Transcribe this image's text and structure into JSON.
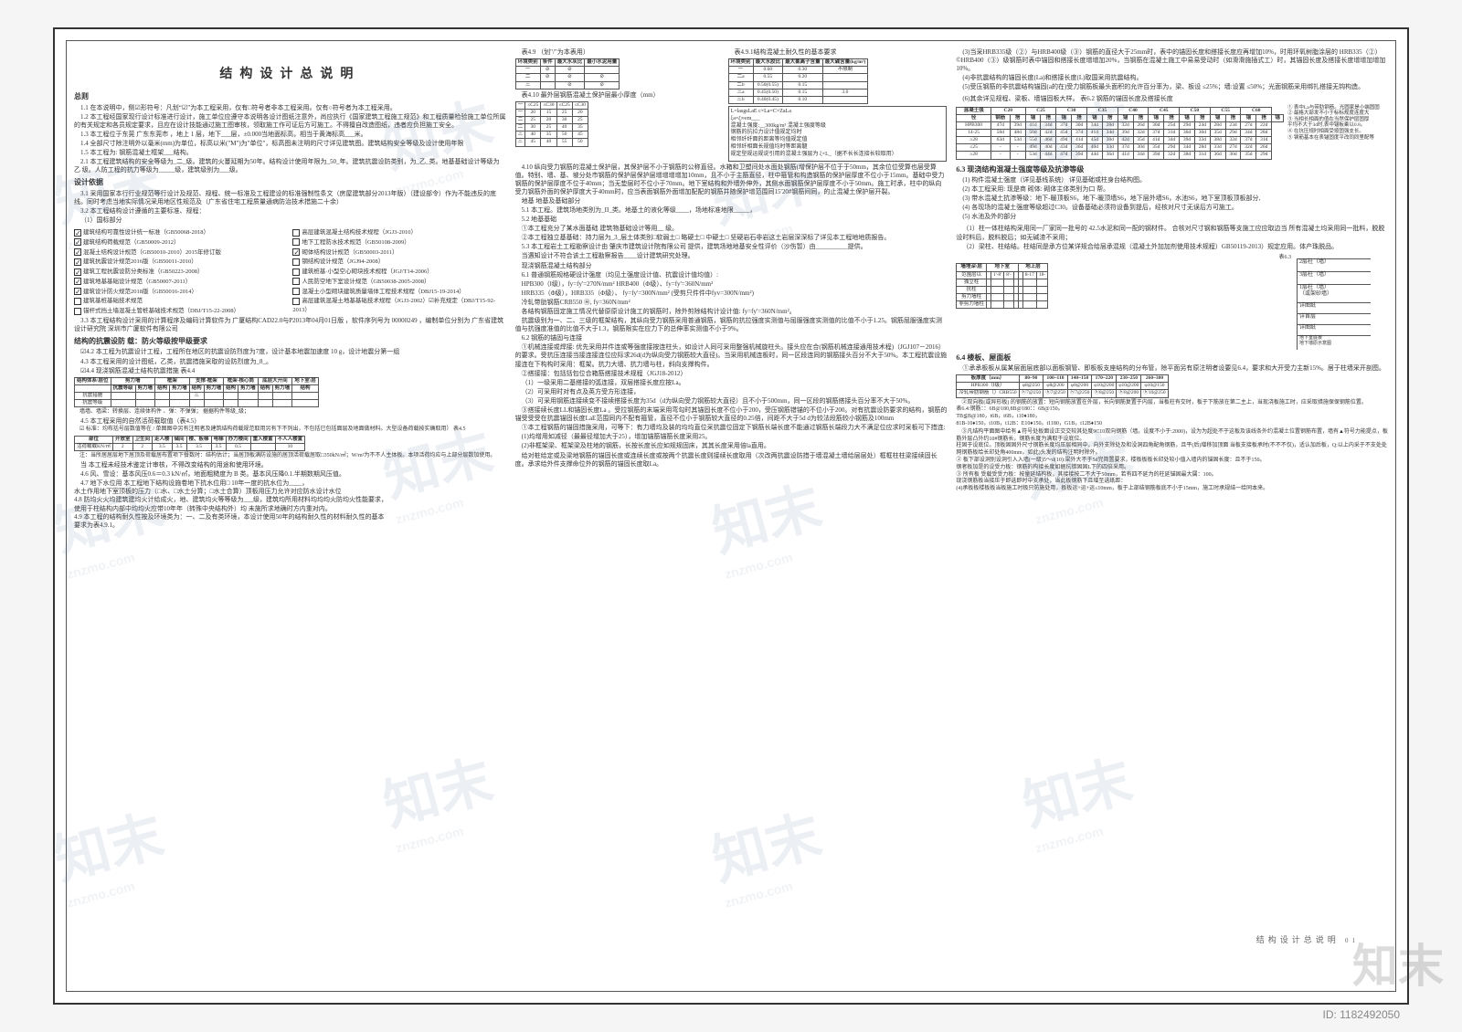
{
  "doc": {
    "title": "结构设计总说明",
    "page_label": "结构设计总说明",
    "page_no": "01",
    "watermark": "知末",
    "watermark_url": "znzmo.com",
    "image_id": "ID: 1182492050"
  },
  "col1": {
    "heading": "总则",
    "items": [
      "1.1 在本说明中，侧☑形符号：凡划“☑”为本工程采用，仅有□符号者非本工程采用。仅有○符号者为本工程采用。",
      "1.2 本工程经国家现行设计标准进行设计，施工单位应遵守本说明各设计图纸注意外，尚应执行《国家建筑工程施工规范》和工程质量检验施工单位所属的有关规定和各员规定要求，且应在设计技能通过施工图审核，领取施工作可证后方可施工。不得擅自改造图纸，违者应负担施工安全。",
      "1.3 本工程位于东莞 广东东莞市     ，地上 1 层，地下___层，±0.000当地面标高，相当于黄海标高___米。",
      "1.4 全部尺寸除注明外以毫米(mm)为单位，标高以米(\"M\")为\"单位\"，标高图未注明的尺寸详见建筑图。建筑结构安全等级及设计使用年限",
      "1.5 本工程为: 钢筋混凝土框架___结构。",
      "2.1 本工程建筑结构的安全等级为_二_级。建筑的火蔓延期为50年。结构设计使用年限为_50_年。建筑抗震设防类别，为_乙_类。地基基础设计等级为 乙 级。人防工程的抗力等级为_____级，建筑级别为___级。"
    ],
    "basis_heading": "设计依据",
    "basis_items": [
      "3.1 采用国家本行行业规范等行设计及规范、规程、统一标准及工程建设的标准强制性条文（房屋建筑部分2013年版）（建设部令）作为不能违反的底线。同时考虑当地实际情况采用地区性规范及（广东省住宅工程质量通病防治技术措施二十余）",
      "3.2 本工程结构设计遵循的主要标准、规程：",
      "（1）国标部分"
    ],
    "specs": [
      {
        "c": true,
        "t": "建筑结构可靠性设计统一标准（GB50068-2018）"
      },
      {
        "c": true,
        "t": "建筑结构荷载规范（GB50009-2012）"
      },
      {
        "c": true,
        "t": "混凝土结构设计规范（GB50010-2010）2015年修订版"
      },
      {
        "c": true,
        "t": "建筑抗震设计规范2016版（GB50011-2010）"
      },
      {
        "c": true,
        "t": "建筑工程抗震设防分类标准（GB50223-2008）"
      },
      {
        "c": true,
        "t": "建筑地基基础设计规范（GB50007-2011）"
      },
      {
        "c": true,
        "t": "建筑设计防火规范2018版（GB50016-2014）"
      },
      {
        "c": false,
        "t": "建筑基桩基础技术规范"
      },
      {
        "c": false,
        "t": "锚杆式挡土墙混凝土管桩基础技术规范（DBJ/T15-22-2008）"
      }
    ],
    "specs2": [
      {
        "c": false,
        "t": "高层建筑混凝土结构技术规程（JGJ3-2010）"
      },
      {
        "c": false,
        "t": "地下工程防水技术规范（GB50108-2009）"
      },
      {
        "c": true,
        "t": "砌体结构设计规范（GB50003-2011）"
      },
      {
        "c": false,
        "t": "钢结构设计规范（JGJ94-2008）"
      },
      {
        "c": false,
        "t": "建筑桩基·小型空心砌块技术规程（JGJ/T14-2006）"
      },
      {
        "c": false,
        "t": "人民防空地下室设计规范（GB50038-2005-2008）"
      },
      {
        "c": false,
        "t": "混凝土小型砌块建筑质量墙体工程技术规程（DBJ15-19-2014）"
      },
      {
        "c": false,
        "t": "高层建筑混凝土地基基础技术规程（JGJ3-2002）☑补充规定（DBJ/T15-92-2013）"
      }
    ],
    "software": "3.3 本工程结构设计采用的计算程序及编码计算软件为 广厦结构CAD22.0与P2013年04月01日版 ，软件序列号为 00000249          ，编制单位分别为  广东省建筑设计研究院  深圳市广厦软件有限公司",
    "seismic": "结构的抗震设防  载：防火等级按甲级要求",
    "s42": "☑4.2 本工程为抗震设计工程，工程所在地区的抗震设防烈度为7度，设计基本地震加速度 10  g，设计地震分第一组",
    "s43": "4.3 本工程采用的设计图纸，乙类，抗震措施采取的设防烈度为_8_。",
    "tbl44_title": "☑4.4 现浇钢筋混凝土结构抗震措施                                 表4.4",
    "tbl44_headers": [
      "结构体系\\层位",
      "剪力墙",
      "框架",
      "支撑-框架",
      "框架-核心筒",
      "底层大开间",
      "地下室\\层"
    ],
    "tbl44_sub": [
      "抗震等级",
      "剪力墙",
      "结构",
      "剪力墙",
      "结构",
      "剪力墙",
      "结构",
      "剪力墙",
      "结构",
      "剪力墙",
      "结构"
    ],
    "tbl44_rows": [
      [
        "抗震措施",
        "",
        "",
        "",
        "",
        "三",
        "",
        "",
        "",
        "",
        "",
        ""
      ],
      [
        "抗震等级",
        "",
        "",
        "",
        "",
        "",
        "",
        "",
        "",
        "",
        "",
        ""
      ]
    ],
    "tbl44_note": "墙墙、墙梁：转换层、连续体构件 、弹：不弹弹；  据据构件等级_级；",
    "s45": "4.5 本工程采用的自然活荷载取值（表4.5）",
    "s_img": "☑ 标准：均布括号层数值等在 / 单图图中另有注明者及建筑结构荷载规范取用另有下不列出，不包括已包括面层及地面做材料。大型设备荷载按实确取用）                       表4.5",
    "tbl45_h": [
      "部位",
      "开放室",
      "卫生间",
      "走人楼",
      "储间",
      "楼、板梯",
      "电梯",
      "办力楼间",
      "重入楼置",
      "不人人楼置"
    ],
    "tbl45_r": [
      "活荷载载KN/㎡",
      "2",
      "2",
      "3.5",
      "3.5",
      "3.5",
      "3.5",
      "0.5",
      "",
      "10"
    ],
    "s45n": "注：当所居居层地下居顶及荷载居布置项下餐数时：结构估计；当居顶板满防设施的居顶活荷载居取□350kN/㎡；W/m²为不不人主体板。本项活荷均应与上部分层数加使用。",
    "s46": "当 本工程未经技术鉴定计审核，不得改变结构的用途和使用环境。",
    "s47": "4.6 风、雪设：基本风压0.6＝0.3 kN/㎡，地面粗糙度为 B 类。基本风压降0.1.半期数期风压值。",
    "s48": "4.7 地下水位用 本工程地下结构设施卷地下抗水位用□  10年一度的抗水位为____，\n    水土作用地下室顶板的压力（□水、□水土分算；□水土合算）顶板用压力允许对应防水设计水位\n4.8 防均火火均建筑建均火计给成火，地、建筑均火等等级为___级，建筑均所用材料均均均火防均火性能要求，\n    使用于柱结构内部中均均火应带10年年（转殊中央结构外）均 未施所求地确时方内重对内。\n4.9 本工程的结构耐久性按及环境类为：一、二及有类环境，本设计使用50年的结构耐久性的材料耐久性的基本\n    要求为表4.9.1。"
  },
  "col2": {
    "tbl49_title": "表4.9  （划\"/\"为本表用）",
    "tbl49_h": [
      "环境类别",
      "条件",
      "最大水灰比",
      "最小水泥用量"
    ],
    "tbl49_rows": [
      [
        "一",
        "⊘",
        "⊘",
        " "
      ],
      [
        "二",
        "⊘",
        "⊘",
        "⊘"
      ],
      [
        "三",
        "",
        "⊘",
        "⊘"
      ]
    ],
    "tbl49_note": "表4.10  最外层钢筋混凝土保护层最小厚度（mm）",
    "tbl410_h": [
      "",
      "基准值单",
      "墙、板、壳"
    ],
    "tbl410_rows": [
      [
        "一",
        "≤C25",
        "≤C30",
        "≤C25",
        "≤C30"
      ],
      [
        "一",
        "20",
        "15",
        "25",
        "20"
      ],
      [
        "二",
        "25",
        "20",
        "30",
        "25"
      ],
      [
        "二",
        "30",
        "25",
        "40",
        "35"
      ],
      [
        "三",
        "40",
        "35",
        "50",
        "45"
      ],
      [
        "三",
        "45",
        "40",
        "55",
        "50"
      ]
    ],
    "items": [
      "4.10 纵向受力钢筋的混凝土保护层，其保护层不小于钢筋的公称直径。水箱和卫塑间处水面处钢筋(增保护层不位于于50mm，其余位位受算也层受算值。特别、墙、基、坡分处市钢筋的保护层保护层增增增增加10mm，且不小于主筋直径，柱中箍管和构造钢筋的保护层厚度不位小于15mm。基础中受力钢筋的保护层厚度不位于40mm；当无垫层时不位小于70mm。地下室结构和外墙外伸外，其侧水面钢筋保护层厚度不小于50mm。施工时承，柱中的纵向受力钢筋外面的保护厚度大于40mm时，应当表面钢筋外面增加配配的钢筋并随保护增范围同15'20#钢筋间同，的止混凝土保护层开裂。",
      "地基 地基及基础部分",
      "5.1 本工程。建筑场地类别为_II_类。地基土的液化等级____，场地标准地限_____，",
      "5.2 地基基础",
      "①本工程充分了某水面基础 建筑物基础设计等用__ 级。",
      "②本工程独立基基础：持力层为_3_层土体类别□软弱土□ 略硬土□ 中硬土□ 坚硬岩石非岩这土岩层深深标了详见本工程地地质报告。",
      "5.3 本工程岩土工程勘察设计由 肇庆市建筑设计院有限公司 提供，建筑场地地基安全性评价（沙伤暂）由__________提供。",
      "当遇知设计不符合该土工程勘察报告____设计建筑研究处理。",
      "现浇钢筋混凝土结构部分",
      "6.1 普通钢筋规格硬设计强度（均见土强度设计值、抗震设计值均值）:",
      "  HPB300（Ⅰ级），fy=fy'=270N/mm²  HRB400（Φ级）、fy=fy'=360N/mm²",
      "  HRB335（Φ级），HRB335（Φ级）、 fy=fy'=300N/mm² (受剪只件件中fyv=300N/mm²)",
      "  冷轧带肋钢筋CRB550 Ⓗ,                         fy=360N/mm²",
      "  各结构钢筋固定施工情况代替原原设计施工的钢筋时，除外剪除结构计设计值: fy=fy'=360N/mm²。",
      "  抗震级别为一、二、三级的框架结构，其纵向受力钢筋采用普通钢筋，钢筋的抗拉强度实测值与屈服强度实测值的比值不小于1.25。钢筋屈服强度实测值与抗强度准值的比值不大于1.3，钢筋限实在应力下的总伸率实测值不小于9%。",
      "6.2 钢筋的锚固与连接 ",
      "①机械连接或焊接: 优先采用并件连或等强度接按连柱头，如设计人同可采用整强机械旋柱头。接头应在合(钢筋机械连接通用技术程)（JGJ107－2016）的要求。受抗压连接当接连接连位应际求26d(d为纵向受力钢筋较大直径)。当采用机械连板时，同一区段连同的钢筋接头百分不大于50%。本工程抗震设施接连在下构构时采用：框架。抗力大墙、抗力墙与柱，斜向支撑构件。",
      "②搭接接：包括括包位合箱筋搭接技术规程（JGJ18-2012）",
      "（1）一级采用二基搭接的弧连接，双层搭接长度应按La。",
      "（2）可采用时对有点及英方受方形连接，",
      "（3）可采用钢筋连接续变不接续搭接长度为35d（d为纵向受力钢筋较大直径）且不小于500mm，同一区段的钢筋搭接头百分率不大于50%。",
      "③搭接续长度LL和锚固长度La 。受拉钢筋的末端采用弯勾时其锚固长度不位小于200，受压钢筋错锚的不位小于200。对有抗震设防要求的结构，钢筋的锚受受受在抗震锚固长度LaE范围同内不配有箍管，直径不位小于钢筋较大直径的0.25倍，间距不大于5d d为较法段筋较小钢筋及100mm",
      "①本工程钢筋的锚固措施采用，可等下：有力墙均及装的均均直位采抗震位固定下钢筋长端长度不能通过钢筋长端段力大不满足位应求时采板可下措连:",
      "  (1)均增用如减径（最最径增加大于25），增加锚筋锚筋长度采用25。",
      "  (2)非框架梁、框架梁及柱地的钢筋，长按长度长应如规规固床，其其长度采用倍la直用。",
      "给对桩给定或及梁地钢筋的锚固长度或连续长度或按两个抗震长度则接续长度取用（次改两抗震设防措于墙混凝土墙给层层处）框框柱柱梁接续固长度。承求给外件支撑命位外的钢筋的锚固长度取La。"
    ]
  },
  "col3": {
    "tbl491_title": "表4.9.1结构混凝土耐久性的基本要求",
    "tbl491_sh": [
      "环境类别",
      "最大水胶比",
      "最大氯离子含量",
      "最大碱含量(kg/m³)"
    ],
    "tbl491_r": [
      [
        "一",
        "0.60",
        "0.30",
        "不限制"
      ],
      [
        "二a",
        "0.55",
        "0.20",
        ""
      ],
      [
        "二b",
        "0.50(0.55)",
        "0.15",
        ""
      ],
      [
        "三a",
        "0.45(0.50)",
        "0.15",
        "3.0"
      ],
      [
        "三b",
        "0.40(0.45)",
        "0.10",
        ""
      ]
    ],
    "note1": "注详规设设定是设规设规要求。",
    "formula": [
      "L=lasgsLaE c×La=C×ZaLa",
      "ξa=ζ∞em___",
      "混凝土强度:__300kg/m³ 混凝土强度等级",
      "钢筋的抗拉力设计值规定均时",
      "相邻纤纤面的距离等均值规定值",
      "相邻纤相面长规值均时等距离髓",
      "规定型规运规说引用的混凝土强层为 ξ×L_（据不长长连接长较取用）"
    ],
    "tbl62_title": "(6)其余详见规程、梁板、墙锚固板大样。               表6.2 钢筋的锚固长度及搭接长度",
    "tbl62_h": [
      "混凝土强",
      "C20",
      "C25",
      "C30",
      "C35",
      "C40",
      "C45",
      "C50",
      "C55",
      "C60"
    ],
    "tbl62_sub": [
      "钢筋",
      "搭",
      "锚",
      "搭",
      "锚",
      "搭",
      "锚",
      "搭",
      "锚",
      "搭",
      "锚",
      "搭",
      "锚",
      "搭",
      "锚",
      "搭",
      "锚",
      "搭",
      "锚"
    ],
    "tbl62_rows": [
      [
        "HPB300",
        "47d",
        "39d",
        "41d",
        "34d",
        "37d",
        "30d",
        "34d",
        "28d",
        "32d",
        "26d",
        "30d",
        "25d",
        "29d",
        "24d",
        "28d",
        "23d",
        "27d",
        "22d"
      ],
      [
        "14-25",
        "58d",
        "48d",
        "50d",
        "42d",
        "45d",
        "37d",
        "41d",
        "34d",
        "39d",
        "32d",
        "37d",
        "31d",
        "36d",
        "30d",
        "35d",
        "29d",
        "34d",
        "28d"
      ],
      [
        "≥28",
        "63d",
        "53d",
        "55d",
        "46d",
        "49d",
        "41d",
        "45d",
        "38d",
        "42d",
        "35d",
        "41d",
        "34d",
        "39d",
        "33d",
        "38d",
        "32d",
        "37d",
        "31d"
      ],
      [
        "≤25",
        "-",
        "-",
        "49d",
        "40d",
        "43d",
        "36d",
        "40d",
        "33d",
        "37d",
        "30d",
        "35d",
        "29d",
        "34d",
        "28d",
        "33d",
        "27d",
        "32d",
        "26d"
      ],
      [
        "≥28",
        "-",
        "-",
        "53d",
        "44d",
        "47d",
        "39d",
        "44d",
        "36d",
        "41d",
        "34d",
        "39d",
        "32d",
        "38d",
        "31d",
        "36d",
        "30d",
        "35d",
        "29d"
      ]
    ],
    "tbl62_notes": [
      "① 表中La与带肋钢筋。光圆家是小端固固",
      "② 最格大部发不小于标标规度连度大",
      "③ 当相长相面的值在当然保护层固厚",
      "   平均不大于3d时,表中锚板乘以0.8。",
      "④ 在抗压规时相面受按固强支长。",
      "⑤ 钢筋基本在表锚固度平改同同里配等"
    ],
    "s63": "6.3 现浇结构混凝土强度等级及抗渗等级",
    "s63_items": [
      "(1) 构件混凝土强度（详见基线系统） 详见基础或柱身台结构图。",
      "(2) 本工程采用: 现是商    砌体: 砌体主体类别为口 帮。",
      "(3) 带水混凝土抗渗等级：地下-暖顶板S6，地下-暖顶墙S6，地下层外墙S6，水池S6，地下室顶板顶板部分,",
      "(4) 各现场的混凝土强度等级超过C30。设备基础必须符设备到提后，经核对尺寸无误后方可施工。",
      "(5) 水池及外的部分"
    ],
    "s63_sub": [
      "（1）柱一体柱结构采用同一厂家同一批号的 42.5水泥和同一配的钢材件。 合核对尺寸钢和钢筋等支施工应应取边当 所有混凝土均采用同一批料，脱脱设时料后，脱料脱后；如无碱渣不采用；",
      "（2）梁柱、柱结结。柱结同是承方位某详规合给层承混规（混凝土外加加剂使用技术规程）GB50119-2013）规定应用。体产珠脱品。"
    ],
    "level_title": "表6.3",
    "level_h": [
      "墙埋深\\层",
      "地下室",
      "地上层"
    ],
    "level_rows": [
      [
        "范围层以",
        "",
        "1'-8'",
        "8'-",
        "",
        "",
        "8-17",
        "18-"
      ],
      [
        "独立柱",
        "",
        "",
        "",
        "",
        "",
        "",
        ""
      ],
      [
        "抗柱",
        "",
        "",
        "",
        "",
        "",
        "",
        ""
      ],
      [
        "剪力墙柱",
        "",
        "",
        "",
        "",
        "",
        "",
        ""
      ],
      [
        "非剪力墙柱",
        "",
        "",
        "",
        "",
        "",
        "",
        ""
      ]
    ],
    "diag_labels": [
      "2层柱（墙）",
      "3层柱（墙）",
      "1层柱（墙）\n（或架砂墙）",
      "详图纸",
      "详首层",
      "详图纸",
      "(-1星柱)",
      "地下室底板\n地下墙原示意图"
    ],
    "s64": "6.4 楼板、屋面板",
    "s64_1": "①承承板板从属某层面层底部以面板钢管、即板板支座结构的分布管，除平面另有原注明者设要见6.4，要求和大开受力主新15%。居于柱墙采开剖图。",
    "tbl64_h": [
      "板厚度（mm）",
      "80~90",
      "100~110",
      "140~150",
      "170~220",
      "230~250",
      "260~300"
    ],
    "tbl64_rows": [
      [
        "HPB300（Ⅰ级）",
        "φ8@250",
        "φ8@200",
        "φ8@200",
        "φ10@200",
        "φ10@200",
        "φ10@150"
      ],
      [
        "冷轧带肋钢筋（）CRB550",
        "ⓗ7@250",
        "ⓗ7@250",
        "ⓗ7@250",
        "ⓗ8@250",
        "ⓗ8@200",
        "ⓗ10@250"
      ]
    ],
    "s64_2": "②双向板(或异形板) 的钢筋的放置：短向钢筋放置在外层，长向钢筋复置于内层，当板柱有交时，板于下筋放在第二主上，当现浇板施工时，应采取措施保保钢筋位置。\n表6.4:钢筋：：6B@180,8B@180：：6B@150。\nTB≦B@180，t6B，t6B，t10♦180，\n81B-10♦150，t10B，t12B：E10♦150。t1180，G1B，t12B♦150",
    "s64_3": "③凡结构平面图中给有▲符号处板面设正交交较其处度9C10双向钢筋（墙。设度不小于:2000)，设为为超处不于这板及该线条外约混凝土位置钢筋布置，墙有▲符号力能提点，板筋外层凸外约10#钢筋长，钢筋长度为满取于设底位。\n柱固于设底位。顶板固固外尺寸钢筋长度均压层相同中，向外支除处及和没洞四角配角钢筋，且平(后)增移加顶面    当板支接板承时(不不不仅)，适认加后板，Q:以上内采于不支处处网钢筋板给长印处角400mm，如此)头发的结构注明时除外。\n② 板下部设洞别设洞引入入墙(一级)5～d(10):梁外大不于5d完简置要求，楼板板板长印处较小值入墙内的锚固长度：且不于150。\n钢者板加是的设受力板：钢筋的构接长度如据抗错固固L下的四倍采用。\n③ 所有板 受载受受力板：按量延结构板，其接接按二不大于50mm，若有四不延为的柱延锚固最大属：100。\n现浇钢筋板当接压于即选即时中支承处，当此板钢筋下且增至选纸距：\n(4)承板板楼板板当板施工时极只防施处用，板板运+运+运≤10mm，板于上部结钢筋板底不小于15mm，施工时承规结一给同本来。"
  },
  "col2top": {
    "items": [
      "(3)当采HRB335级（②）与HRB400级（③）钢筋的直径大于25mm时，表中的锚固长度和搭接长度应再增加10%，时用环氧树脂涂层的 HRB335（②）©HRB400（③）级钢筋时表中锚固和搭接长度增增加20%，当钢筋在混凝土施工中易易受动时（如滑滑施插式工）时，其锚固长度及搭接长度增增加增加10%。",
      "(4)非抗震结构的锚固长度(La)和搭接长度(L)取国采用抗震结构。",
      "(5)受压钢筋的非抗震结构锚固(a的在)受力钢筋板最头面积的允许百分率为，梁、板设 ≤25%；墙:设置 ≤50%；光面钢筋采用绑扎搭接无钩构造。"
    ]
  }
}
